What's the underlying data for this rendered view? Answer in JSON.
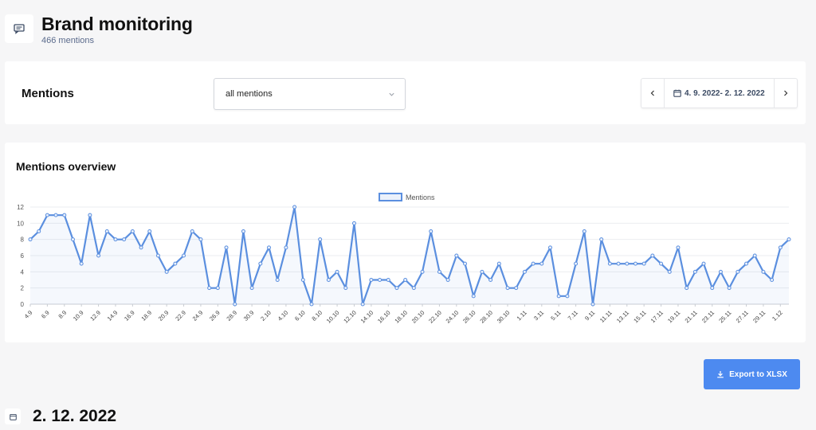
{
  "header": {
    "title": "Brand monitoring",
    "subtitle": "466 mentions",
    "icon": "message-icon"
  },
  "filter": {
    "title": "Mentions",
    "select_value": "all mentions",
    "date_range": "4. 9. 2022- 2. 12. 2022",
    "prev_icon": "chevron-left-icon",
    "next_icon": "chevron-right-icon",
    "calendar_icon": "calendar-icon"
  },
  "chart_card": {
    "title": "Mentions overview"
  },
  "export": {
    "label": "Export to XLSX",
    "icon": "download-icon"
  },
  "date_section": {
    "heading": "2. 12. 2022",
    "icon": "calendar-icon"
  },
  "colors": {
    "line": "#5b8fdf",
    "accent": "#4d8af0"
  },
  "chart_data": {
    "type": "line",
    "legend": {
      "label": "Mentions",
      "position": "top-center"
    },
    "grid": true,
    "ylim": [
      0,
      12
    ],
    "yticks": [
      0,
      2,
      4,
      6,
      8,
      10,
      12
    ],
    "x": [
      "4.9",
      "5.9",
      "6.9",
      "7.9",
      "8.9",
      "9.9",
      "10.9",
      "11.9",
      "12.9",
      "13.9",
      "14.9",
      "15.9",
      "16.9",
      "17.9",
      "18.9",
      "19.9",
      "20.9",
      "21.9",
      "22.9",
      "23.9",
      "24.9",
      "25.9",
      "26.9",
      "27.9",
      "28.9",
      "29.9",
      "30.9",
      "1.10",
      "2.10",
      "3.10",
      "4.10",
      "5.10",
      "6.10",
      "7.10",
      "8.10",
      "9.10",
      "10.10",
      "11.10",
      "12.10",
      "13.10",
      "14.10",
      "15.10",
      "16.10",
      "17.10",
      "18.10",
      "19.10",
      "20.10",
      "21.10",
      "22.10",
      "23.10",
      "24.10",
      "25.10",
      "26.10",
      "27.10",
      "28.10",
      "29.10",
      "30.10",
      "31.10",
      "1.11",
      "2.11",
      "3.11",
      "4.11",
      "5.11",
      "6.11",
      "7.11",
      "8.11",
      "9.11",
      "10.11",
      "11.11",
      "12.11",
      "13.11",
      "14.11",
      "15.11",
      "16.11",
      "17.11",
      "18.11",
      "19.11",
      "20.11",
      "21.11",
      "22.11",
      "23.11",
      "24.11",
      "25.11",
      "26.11",
      "27.11",
      "28.11",
      "29.11",
      "30.11",
      "1.12",
      "2.12"
    ],
    "xtick_labels": [
      "4.9",
      "6.9",
      "8.9",
      "10.9",
      "12.9",
      "14.9",
      "16.9",
      "18.9",
      "20.9",
      "22.9",
      "24.9",
      "26.9",
      "28.9",
      "30.9",
      "2.10",
      "4.10",
      "6.10",
      "8.10",
      "10.10",
      "12.10",
      "14.10",
      "16.10",
      "18.10",
      "20.10",
      "22.10",
      "24.10",
      "26.10",
      "28.10",
      "30.10",
      "1.11",
      "3.11",
      "5.11",
      "7.11",
      "9.11",
      "11.11",
      "13.11",
      "15.11",
      "17.11",
      "19.11",
      "21.11",
      "23.11",
      "25.11",
      "27.11",
      "29.11",
      "1.12"
    ],
    "series": [
      {
        "name": "Mentions",
        "values": [
          8,
          9,
          11,
          11,
          11,
          8,
          5,
          11,
          6,
          9,
          8,
          8,
          9,
          7,
          9,
          6,
          4,
          5,
          6,
          9,
          8,
          2,
          2,
          7,
          0,
          9,
          2,
          5,
          7,
          3,
          7,
          12,
          3,
          0,
          8,
          3,
          4,
          2,
          10,
          0,
          3,
          3,
          3,
          2,
          3,
          2,
          4,
          9,
          4,
          3,
          6,
          5,
          1,
          4,
          3,
          5,
          2,
          2,
          4,
          5,
          5,
          7,
          1,
          1,
          5,
          9,
          0,
          8,
          5,
          5,
          5,
          5,
          5,
          6,
          5,
          4,
          7,
          2,
          4,
          5,
          2,
          4,
          2,
          4,
          5,
          6,
          4,
          3,
          7,
          8
        ]
      }
    ]
  }
}
